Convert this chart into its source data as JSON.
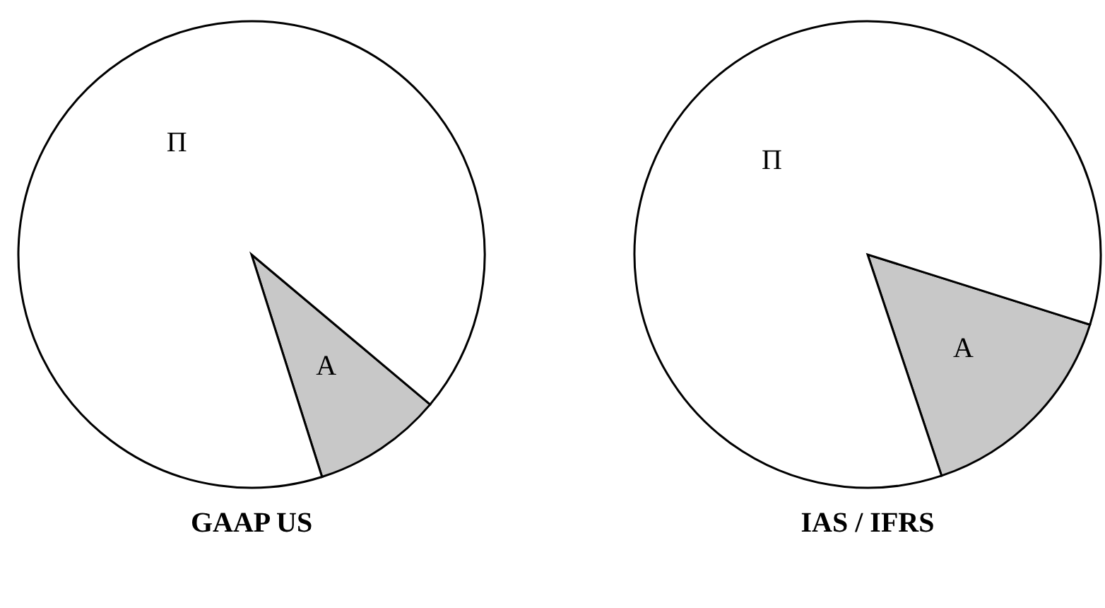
{
  "chart_data": [
    {
      "type": "pie",
      "title": "GAAP US",
      "categories": [
        "A",
        "Π"
      ],
      "values": [
        9,
        91
      ],
      "colors": [
        "#c8c8c8",
        "#ffffff"
      ],
      "legend": false
    },
    {
      "type": "pie",
      "title": "IAS / IFRS",
      "categories": [
        "A",
        "Π"
      ],
      "values": [
        15,
        85
      ],
      "colors": [
        "#c8c8c8",
        "#ffffff"
      ],
      "legend": false
    }
  ]
}
